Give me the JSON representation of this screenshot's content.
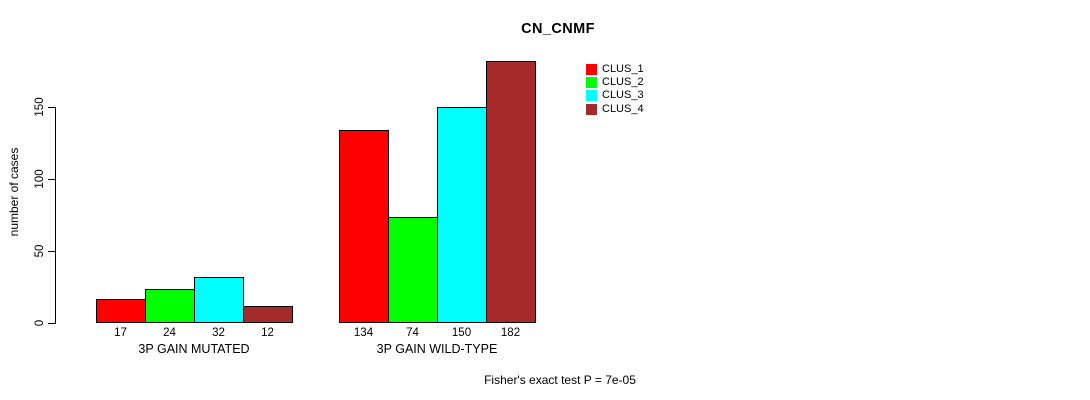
{
  "chart_data": {
    "type": "bar",
    "title": "CN_CNMF",
    "ylabel": "number of cases",
    "xlabel": "",
    "categories": [
      "3P GAIN MUTATED",
      "3P GAIN WILD-TYPE"
    ],
    "series": [
      {
        "name": "CLUS_1",
        "color": "#FF0000",
        "values": [
          17,
          134
        ]
      },
      {
        "name": "CLUS_2",
        "color": "#00FF00",
        "values": [
          24,
          74
        ]
      },
      {
        "name": "CLUS_3",
        "color": "#00FFFF",
        "values": [
          32,
          150
        ]
      },
      {
        "name": "CLUS_4",
        "color": "#A52A2A",
        "values": [
          12,
          182
        ]
      }
    ],
    "yticks": [
      0,
      50,
      100,
      150
    ],
    "ylim": [
      0,
      190
    ],
    "grid": false,
    "legend_position": "top-right",
    "bar_value_labels": true,
    "annotation": "Fisher's exact test P = 7e-05"
  }
}
